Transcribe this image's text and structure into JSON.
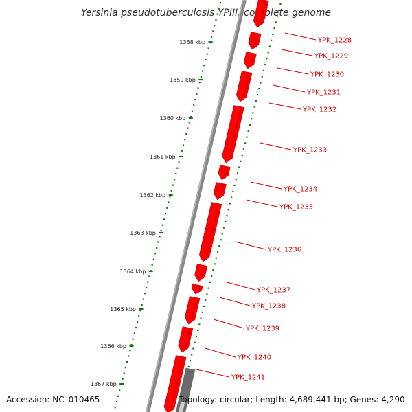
{
  "title": "Yersinia pseudotuberculosis YPIII, complete genome",
  "accession_text": "Accession: NC_010465",
  "stats_text": "Topology: circular; Length: 4,689,441 bp; Genes: 4,290",
  "colors": {
    "feature": "#ff0000",
    "feature_dark": "#b80000",
    "backbone": "#888888",
    "grey_feature": "#6b6b6b",
    "dotted_ring": "#0d7a0d",
    "label": "#cc0000"
  },
  "kbp_ticks": [
    "1358 kbp",
    "1359 kbp",
    "1360 kbp",
    "1361 kbp",
    "1362 kbp",
    "1363 kbp",
    "1364 kbp",
    "1365 kbp",
    "1366 kbp",
    "1367 kbp"
  ],
  "genes": [
    "YPK_1228",
    "YPK_1229",
    "YPK_1230",
    "YPK_1231",
    "YPK_1232",
    "YPK_1233",
    "YPK_1234",
    "YPK_1235",
    "YPK_1236",
    "YPK_1237",
    "YPK_1238",
    "YPK_1239",
    "YPK_1240",
    "YPK_1241"
  ]
}
